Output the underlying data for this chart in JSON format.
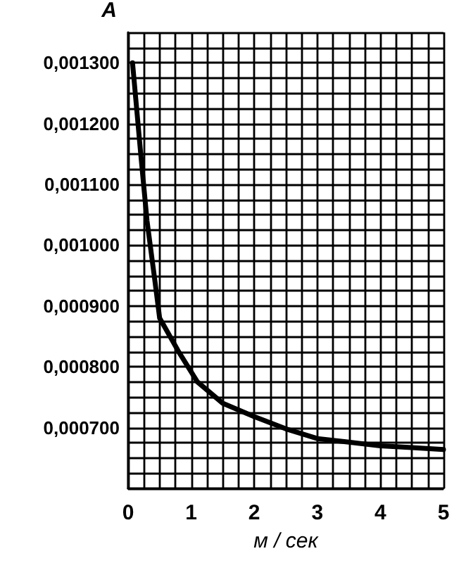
{
  "chart_data": {
    "type": "line",
    "xlabel": "м / сек",
    "ylabel": "A",
    "x": [
      0.07,
      0.2,
      0.3,
      0.42,
      0.5,
      0.8,
      1.1,
      1.5,
      2,
      2.5,
      3,
      3.5,
      4,
      4.5,
      5
    ],
    "series": [
      {
        "color": "#000000",
        "values": [
          0.0013,
          0.00115,
          0.00104,
          0.000945,
          0.00088,
          0.000825,
          0.000775,
          0.00074,
          0.000718,
          0.000698,
          0.000682,
          0.000676,
          0.00067,
          0.000667,
          0.000664
        ]
      }
    ],
    "xlim": [
      0,
      5
    ],
    "ylim": [
      0.0006,
      0.00135
    ],
    "xticks": [
      0,
      {
        "value": 0.25,
        "label": null
      },
      {
        "value": 0.5,
        "label": null
      },
      {
        "value": 0.75,
        "label": null
      },
      1,
      {
        "value": 1.25,
        "label": null
      },
      {
        "value": 1.5,
        "label": null
      },
      {
        "value": 1.75,
        "label": null
      },
      2,
      {
        "value": 2.25,
        "label": null
      },
      {
        "value": 2.5,
        "label": null
      },
      {
        "value": 2.75,
        "label": null
      },
      3,
      {
        "value": 3.25,
        "label": null
      },
      {
        "value": 3.5,
        "label": null
      },
      {
        "value": 3.75,
        "label": null
      },
      4,
      {
        "value": 4.25,
        "label": null
      },
      {
        "value": 4.5,
        "label": null
      },
      {
        "value": 4.75,
        "label": null
      },
      5
    ],
    "yticks": [
      {
        "value": 0.0006,
        "label": null
      },
      {
        "value": 0.000625,
        "label": null
      },
      {
        "value": 0.00065,
        "label": null
      },
      {
        "value": 0.000675,
        "label": null
      },
      {
        "value": 0.0007,
        "label": "0,000700"
      },
      {
        "value": 0.000725,
        "label": null
      },
      {
        "value": 0.00075,
        "label": null
      },
      {
        "value": 0.000775,
        "label": null
      },
      {
        "value": 0.0008,
        "label": "0,000800"
      },
      {
        "value": 0.000825,
        "label": null
      },
      {
        "value": 0.00085,
        "label": null
      },
      {
        "value": 0.000875,
        "label": null
      },
      {
        "value": 0.0009,
        "label": "0,000900"
      },
      {
        "value": 0.000925,
        "label": null
      },
      {
        "value": 0.00095,
        "label": null
      },
      {
        "value": 0.000975,
        "label": null
      },
      {
        "value": 0.001,
        "label": "0,001000"
      },
      {
        "value": 0.001025,
        "label": null
      },
      {
        "value": 0.00105,
        "label": null
      },
      {
        "value": 0.001075,
        "label": null
      },
      {
        "value": 0.0011,
        "label": "0,001100"
      },
      {
        "value": 0.001125,
        "label": null
      },
      {
        "value": 0.00115,
        "label": null
      },
      {
        "value": 0.001175,
        "label": null
      },
      {
        "value": 0.0012,
        "label": "0,001200"
      },
      {
        "value": 0.001225,
        "label": null
      },
      {
        "value": 0.00125,
        "label": null
      },
      {
        "value": 0.001275,
        "label": null
      },
      {
        "value": 0.0013,
        "label": "0,001300"
      },
      {
        "value": 0.001325,
        "label": null
      },
      {
        "value": 0.00135,
        "label": null
      }
    ],
    "grid": true,
    "marker": "none",
    "line_style": "solid"
  }
}
